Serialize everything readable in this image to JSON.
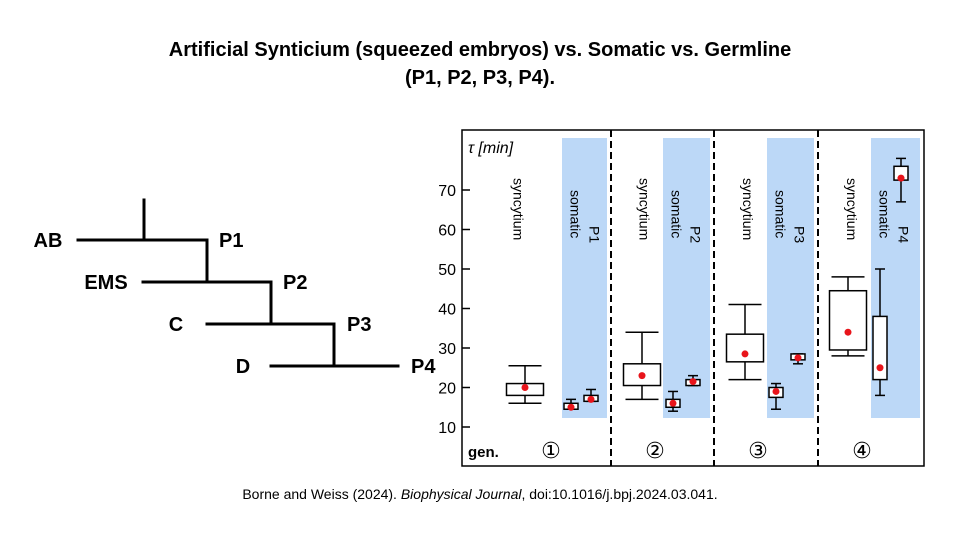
{
  "title": {
    "line1": "Artificial Synticium (squeezed embryos) vs. Somatic vs. Germline",
    "line2": "(P1, P2, P3, P4)."
  },
  "citation": {
    "authors": "Borne and Weiss (2024). ",
    "journal": "Biophysical Journal",
    "doi": ", doi:10.1016/j.bpj.2024.03.041."
  },
  "tree": {
    "labels": [
      "AB",
      "P1",
      "EMS",
      "P2",
      "C",
      "P3",
      "D",
      "P4"
    ]
  },
  "chart_data": {
    "type": "box",
    "ylabel": "τ [min]",
    "ylim": [
      10,
      80
    ],
    "yticks": [
      10,
      20,
      30,
      40,
      50,
      60,
      70
    ],
    "x_prefix": "gen.",
    "generations": [
      "①",
      "②",
      "③",
      "④"
    ],
    "series": [
      {
        "gen": 1,
        "label": "syncytium",
        "shaded": false,
        "whisker_low": 16,
        "q1": 18,
        "q3": 21,
        "whisker_high": 25.5,
        "mean": 20
      },
      {
        "gen": 1,
        "label": "somatic",
        "label2": "P1",
        "shaded": true,
        "whisker_low": 14.5,
        "q1": 14.5,
        "q3": 16,
        "whisker_high": 17,
        "mean": 15
      },
      {
        "gen": 1,
        "label": "somatic",
        "label2": "P1",
        "shaded": true,
        "whisker_low": 16.5,
        "q1": 16.5,
        "q3": 18,
        "whisker_high": 19.5,
        "mean": 17
      },
      {
        "gen": 2,
        "label": "syncytium",
        "shaded": false,
        "whisker_low": 17,
        "q1": 20.5,
        "q3": 26,
        "whisker_high": 34,
        "mean": 23
      },
      {
        "gen": 2,
        "label": "somatic",
        "label2": "P2",
        "shaded": true,
        "whisker_low": 14,
        "q1": 15,
        "q3": 17,
        "whisker_high": 19,
        "mean": 16
      },
      {
        "gen": 2,
        "label": "somatic",
        "label2": "P2",
        "shaded": true,
        "whisker_low": 20.5,
        "q1": 20.5,
        "q3": 22,
        "whisker_high": 23,
        "mean": 21.5
      },
      {
        "gen": 3,
        "label": "syncytium",
        "shaded": false,
        "whisker_low": 22,
        "q1": 26.5,
        "q3": 33.5,
        "whisker_high": 41,
        "mean": 28.5
      },
      {
        "gen": 3,
        "label": "somatic",
        "label2": "P3",
        "shaded": true,
        "whisker_low": 14.5,
        "q1": 17.5,
        "q3": 20,
        "whisker_high": 21,
        "mean": 19
      },
      {
        "gen": 3,
        "label": "somatic",
        "label2": "P3",
        "shaded": true,
        "whisker_low": 26,
        "q1": 27,
        "q3": 28.5,
        "whisker_high": 28.5,
        "mean": 27.5
      },
      {
        "gen": 4,
        "label": "syncytium",
        "shaded": false,
        "whisker_low": 28,
        "q1": 29.5,
        "q3": 44.5,
        "whisker_high": 48,
        "mean": 34
      },
      {
        "gen": 4,
        "label": "somatic",
        "label2": "P4",
        "shaded": true,
        "whisker_low": 18,
        "q1": 22,
        "q3": 38,
        "whisker_high": 50,
        "mean": 25
      },
      {
        "gen": 4,
        "label": "somatic",
        "label2": "P4",
        "shaded": true,
        "whisker_low": 67,
        "q1": 72.5,
        "q3": 76,
        "whisker_high": 78,
        "mean": 73
      }
    ]
  },
  "colors": {
    "shade": "#bcd8f7",
    "mean_dot": "#e8141b",
    "axis": "#000000"
  }
}
